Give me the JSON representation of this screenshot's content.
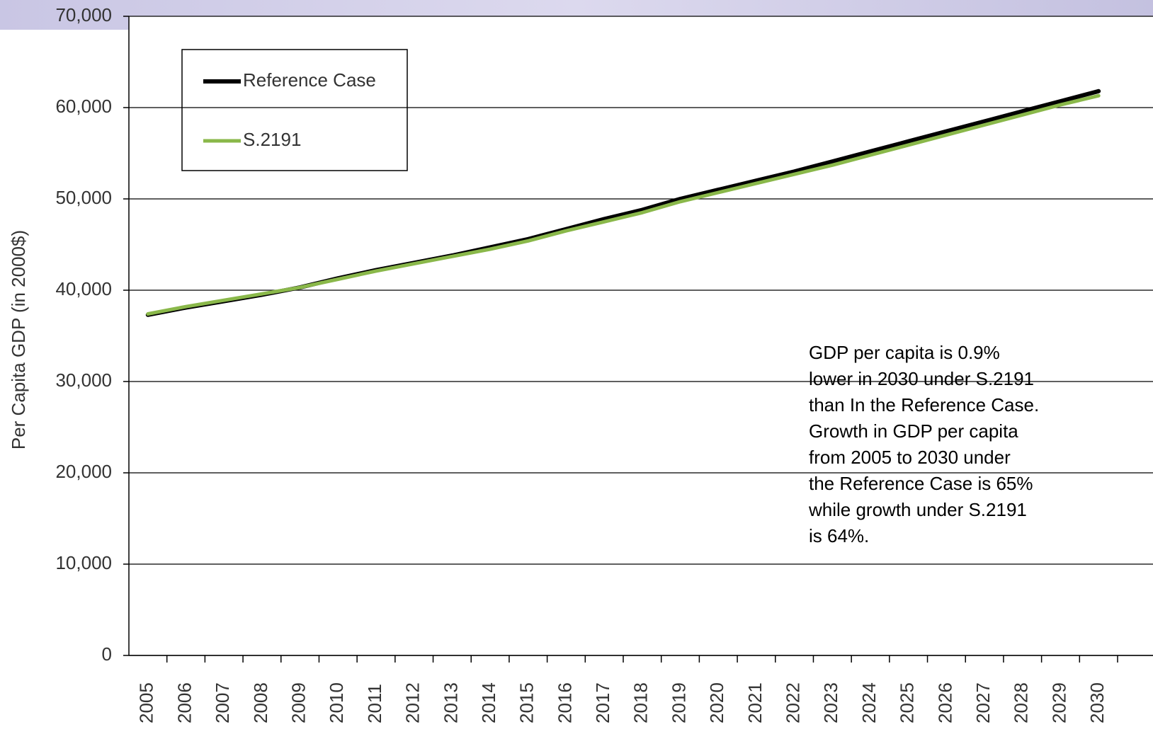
{
  "chart_data": {
    "type": "line",
    "y_axis_label": "Per Capita GDP (in 2000$)",
    "categories": [
      "2005",
      "2006",
      "2007",
      "2008",
      "2009",
      "2010",
      "2011",
      "2012",
      "2013",
      "2014",
      "2015",
      "2016",
      "2017",
      "2018",
      "2019",
      "2020",
      "2021",
      "2022",
      "2023",
      "2024",
      "2025",
      "2026",
      "2027",
      "2028",
      "2029",
      "2030"
    ],
    "series": [
      {
        "name": "Reference Case",
        "color": "#000000",
        "values": [
          37300,
          38100,
          38800,
          39500,
          40300,
          41300,
          42200,
          43000,
          43800,
          44700,
          45600,
          46700,
          47800,
          48800,
          50000,
          51000,
          52000,
          53000,
          54100,
          55200,
          56300,
          57400,
          58500,
          59600,
          60700,
          61800
        ]
      },
      {
        "name": "S.2191",
        "color": "#8ab84a",
        "values": [
          37400,
          38200,
          38900,
          39600,
          40300,
          41200,
          42100,
          42900,
          43700,
          44500,
          45400,
          46500,
          47500,
          48500,
          49700,
          50700,
          51700,
          52700,
          53700,
          54800,
          55900,
          57000,
          58100,
          59200,
          60300,
          61300
        ]
      }
    ],
    "ylim": [
      0,
      70000
    ],
    "yticks": [
      0,
      {
        "value": 10000,
        "label": "10,000"
      },
      {
        "value": 20000,
        "label": "20,000"
      },
      {
        "value": 30000,
        "label": "30,000"
      },
      {
        "value": 40000,
        "label": "40,000"
      },
      {
        "value": 50000,
        "label": "50,000"
      },
      {
        "value": 60000,
        "label": "60,000"
      },
      {
        "value": 70000,
        "label": "70,000"
      }
    ],
    "grid": true,
    "legend_position": "upper-left",
    "annotation": [
      "GDP per capita is 0.9%",
      "lower in 2030 under S.2191",
      "than In the Reference Case.",
      "Growth in GDP per capita",
      "from 2005 to 2030 under",
      "the Reference Case is 65%",
      "while growth under S.2191",
      "is 64%."
    ]
  }
}
